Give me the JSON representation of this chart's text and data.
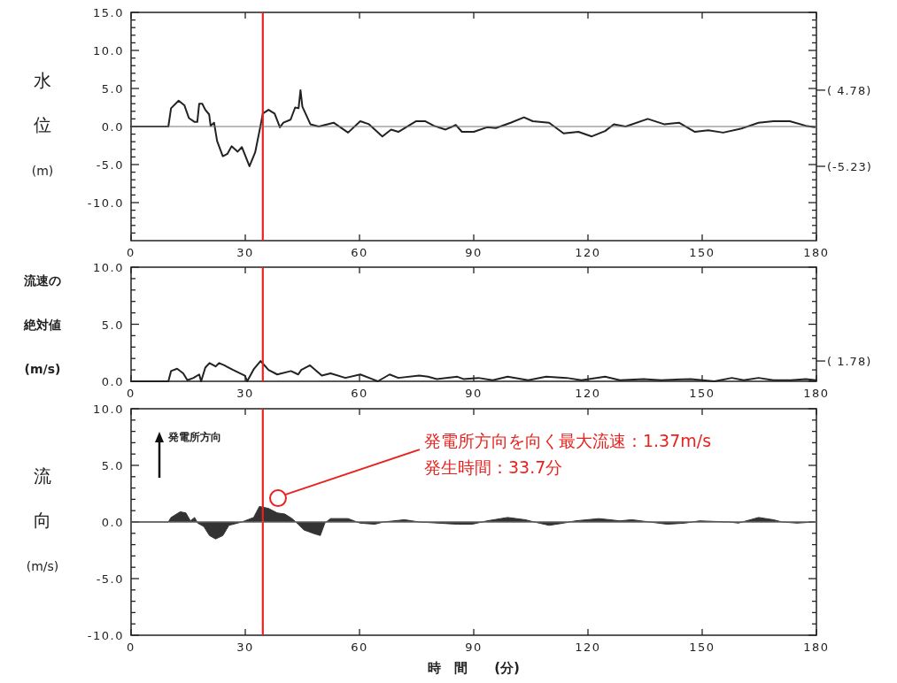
{
  "chart_data": [
    {
      "type": "line",
      "ylabel": "水位(m)",
      "xlim": [
        0,
        180
      ],
      "xticks": [
        0,
        30,
        60,
        90,
        120,
        150,
        180
      ],
      "ylim": [
        -15,
        15
      ],
      "yticks": [
        {
          "value": -14,
          "label": null
        },
        {
          "value": -13,
          "label": null
        },
        {
          "value": -12,
          "label": null
        },
        {
          "value": -11,
          "label": null
        },
        {
          "value": -10,
          "label": "-10.0"
        },
        {
          "value": -9,
          "label": null
        },
        {
          "value": -8,
          "label": null
        },
        {
          "value": -7,
          "label": null
        },
        {
          "value": -6,
          "label": null
        },
        {
          "value": -5,
          "label": "-5.0"
        },
        {
          "value": -4,
          "label": null
        },
        {
          "value": -3,
          "label": null
        },
        {
          "value": -2,
          "label": null
        },
        {
          "value": -1,
          "label": null
        },
        {
          "value": 0,
          "label": "0.0"
        },
        {
          "value": 1,
          "label": null
        },
        {
          "value": 2,
          "label": null
        },
        {
          "value": 3,
          "label": null
        },
        {
          "value": 4,
          "label": null
        },
        {
          "value": 5,
          "label": "5.0"
        },
        {
          "value": 6,
          "label": null
        },
        {
          "value": 7,
          "label": null
        },
        {
          "value": 8,
          "label": null
        },
        {
          "value": 9,
          "label": null
        },
        {
          "value": 10,
          "label": "10.0"
        },
        {
          "value": 11,
          "label": null
        },
        {
          "value": 12,
          "label": null
        },
        {
          "value": 13,
          "label": null
        },
        {
          "value": 14,
          "label": null
        },
        {
          "value": 15,
          "label": "15.0"
        }
      ],
      "x": [
        0,
        9.8,
        10.5,
        12.5,
        14.0,
        15.2,
        16.7,
        17.4,
        17.9,
        18.7,
        19.5,
        20.5,
        20.9,
        21.8,
        22.6,
        24.1,
        25.3,
        26.4,
        28.0,
        29.1,
        31.1,
        32.6,
        34.0,
        34.6,
        36.1,
        37.7,
        39.1,
        40.0,
        41.9,
        43.1,
        44.0,
        44.5,
        45.0,
        47.1,
        49.3,
        53.2,
        57.0,
        60.2,
        62.5,
        66.0,
        68.3,
        70.2,
        74.9,
        77.2,
        79.5,
        82.6,
        85.3,
        86.9,
        90.0,
        93.5,
        95.8,
        99.7,
        103.2,
        105.5,
        109.8,
        113.6,
        117.5,
        121.0,
        124.5,
        126.8,
        129.9,
        135.7,
        140.0,
        143.9,
        148.1,
        151.6,
        155.5,
        160.1,
        164.8,
        168.7,
        173.0,
        177.2,
        179.5
      ],
      "series": [
        {
          "color": "#222222",
          "values": [
            0,
            0,
            2.4,
            3.4,
            2.8,
            1.1,
            0.6,
            0.6,
            3.0,
            3.0,
            2.2,
            1.6,
            0.1,
            0.5,
            -1.9,
            -3.9,
            -3.6,
            -2.6,
            -3.3,
            -2.7,
            -5.23,
            -3.4,
            0.1,
            1.7,
            2.2,
            1.7,
            -0.1,
            0.5,
            0.9,
            2.5,
            2.4,
            4.78,
            2.6,
            0.3,
            0,
            0.5,
            -0.8,
            0.7,
            0.3,
            -1.3,
            -0.4,
            -0.7,
            0.7,
            0.7,
            0.1,
            -0.4,
            0.2,
            -0.7,
            -0.7,
            -0.1,
            -0.2,
            0.5,
            1.2,
            0.7,
            0.5,
            -0.9,
            -0.7,
            -1.3,
            -0.6,
            0.3,
            0.0,
            1.0,
            0.3,
            0.5,
            -0.7,
            -0.5,
            -0.8,
            -0.3,
            0.5,
            0.7,
            0.7,
            0.1,
            -0.1
          ]
        }
      ],
      "ref_lines": [
        {
          "axis": "x",
          "value": 34.6,
          "color": "#e8231f"
        },
        {
          "axis": "y",
          "value": 0,
          "color": "#777777"
        }
      ],
      "annotations": [
        "( 4.78)",
        "(-5.23)"
      ],
      "grid": false
    },
    {
      "type": "line",
      "ylabel": "流速の絶対値(m/s)",
      "xlim": [
        0,
        180
      ],
      "xticks": [
        0,
        30,
        60,
        90,
        120,
        150,
        180
      ],
      "ylim": [
        0,
        10
      ],
      "yticks": [
        {
          "value": 0,
          "label": "0.0"
        },
        {
          "value": 1,
          "label": null
        },
        {
          "value": 2,
          "label": null
        },
        {
          "value": 3,
          "label": null
        },
        {
          "value": 4,
          "label": null
        },
        {
          "value": 5,
          "label": "5.0"
        },
        {
          "value": 6,
          "label": null
        },
        {
          "value": 7,
          "label": null
        },
        {
          "value": 8,
          "label": null
        },
        {
          "value": 9,
          "label": null
        },
        {
          "value": 10,
          "label": "10.0"
        }
      ],
      "x": [
        0,
        9.8,
        10.5,
        12.1,
        13.7,
        14.8,
        16.4,
        17.9,
        18.4,
        19.5,
        20.6,
        22.2,
        23.1,
        24.5,
        26.8,
        29.9,
        30.5,
        32.3,
        34.0,
        36.1,
        38.4,
        42.0,
        43.9,
        44.7,
        47.0,
        50.1,
        52.4,
        56.3,
        60.2,
        63.3,
        64.8,
        67.9,
        70.2,
        75.7,
        78.0,
        80.3,
        85.7,
        87.3,
        91.2,
        95.0,
        98.9,
        104.3,
        109.0,
        114.4,
        118.3,
        124.5,
        128.4,
        134.6,
        139.2,
        147.0,
        153.2,
        157.8,
        160.9,
        164.8,
        168.7,
        173.3,
        177.2,
        179.9
      ],
      "series": [
        {
          "color": "#222222",
          "values": [
            0,
            0,
            0.9,
            1.1,
            0.7,
            0.1,
            0.3,
            0.6,
            0,
            1.2,
            1.6,
            1.3,
            1.6,
            1.4,
            1.0,
            0.5,
            0,
            1.1,
            1.78,
            1.0,
            0.6,
            0.9,
            0.6,
            1.0,
            1.4,
            0.5,
            0.7,
            0.3,
            0.6,
            0.2,
            0.0,
            0.6,
            0.3,
            0.5,
            0.4,
            0.2,
            0.4,
            0.2,
            0.3,
            0.1,
            0.4,
            0.1,
            0.4,
            0.3,
            0.1,
            0.4,
            0.1,
            0.2,
            0.1,
            0.2,
            0.0,
            0.3,
            0.1,
            0.3,
            0.1,
            0.1,
            0.2,
            0.1
          ]
        }
      ],
      "ref_lines": [
        {
          "axis": "x",
          "value": 34.6,
          "color": "#e8231f"
        }
      ],
      "annotations": [
        "( 1.78)"
      ],
      "grid": false
    },
    {
      "type": "area",
      "ylabel": "流向(m/s)",
      "xlabel": "時　間　　(分)",
      "xlim": [
        0,
        180
      ],
      "xticks": [
        0,
        30,
        60,
        90,
        120,
        150,
        180
      ],
      "ylim": [
        -10,
        10
      ],
      "yticks": [
        {
          "value": -10,
          "label": "-10.0"
        },
        {
          "value": -9,
          "label": null
        },
        {
          "value": -8,
          "label": null
        },
        {
          "value": -7,
          "label": null
        },
        {
          "value": -6,
          "label": null
        },
        {
          "value": -5,
          "label": "-5.0"
        },
        {
          "value": -4,
          "label": null
        },
        {
          "value": -3,
          "label": null
        },
        {
          "value": -2,
          "label": null
        },
        {
          "value": -1,
          "label": null
        },
        {
          "value": 0,
          "label": "0.0"
        },
        {
          "value": 1,
          "label": null
        },
        {
          "value": 2,
          "label": null
        },
        {
          "value": 3,
          "label": null
        },
        {
          "value": 4,
          "label": null
        },
        {
          "value": 5,
          "label": "5.0"
        },
        {
          "value": 6,
          "label": null
        },
        {
          "value": 7,
          "label": null
        },
        {
          "value": 8,
          "label": null
        },
        {
          "value": 9,
          "label": null
        },
        {
          "value": 10,
          "label": "10.0"
        }
      ],
      "x": [
        0,
        9.8,
        10.5,
        12.9,
        14.4,
        15.6,
        16.7,
        17.5,
        19.1,
        20.6,
        22.2,
        24.1,
        25.7,
        29.1,
        32.2,
        33.7,
        36.1,
        38.4,
        40.4,
        42.3,
        43.9,
        45.4,
        47.8,
        49.7,
        50.9,
        52.4,
        57.0,
        60.1,
        64.0,
        66.3,
        71.8,
        75.7,
        85.7,
        89.6,
        93.5,
        98.9,
        103.5,
        105.9,
        109.8,
        113.6,
        116.7,
        122.9,
        128.4,
        131.5,
        136.2,
        140.8,
        145.5,
        149.3,
        157.1,
        159.5,
        164.8,
        168.7,
        171.0,
        174.9,
        179.5
      ],
      "series": [
        {
          "color": "#333333",
          "values": [
            0,
            0,
            0.4,
            0.9,
            0.8,
            0.1,
            0.4,
            -0.1,
            -0.4,
            -1.2,
            -1.5,
            -1.2,
            -0.3,
            0,
            0.4,
            1.37,
            1.2,
            0.8,
            0.7,
            0.3,
            -0.2,
            -0.7,
            -1.0,
            -1.2,
            -0.1,
            0.3,
            0.3,
            -0.1,
            -0.2,
            0,
            0.2,
            0,
            -0.2,
            -0.2,
            0.1,
            0.4,
            0.2,
            0,
            -0.3,
            -0.1,
            0.1,
            0.3,
            0.1,
            0.2,
            0,
            -0.2,
            -0.1,
            0.1,
            0,
            -0.1,
            0.4,
            0.2,
            0,
            -0.1,
            0
          ]
        }
      ],
      "ref_lines": [
        {
          "axis": "x",
          "value": 34.6,
          "color": "#e8231f"
        },
        {
          "axis": "y",
          "value": 0,
          "color": "#777777"
        }
      ],
      "annotations": [
        {
          "text": "発電所方向を向く最大流速：1.37m/s",
          "x": 38.6,
          "y": 2.1
        },
        "発生時間：33.7分",
        "発電所方向"
      ],
      "grid": false
    }
  ]
}
